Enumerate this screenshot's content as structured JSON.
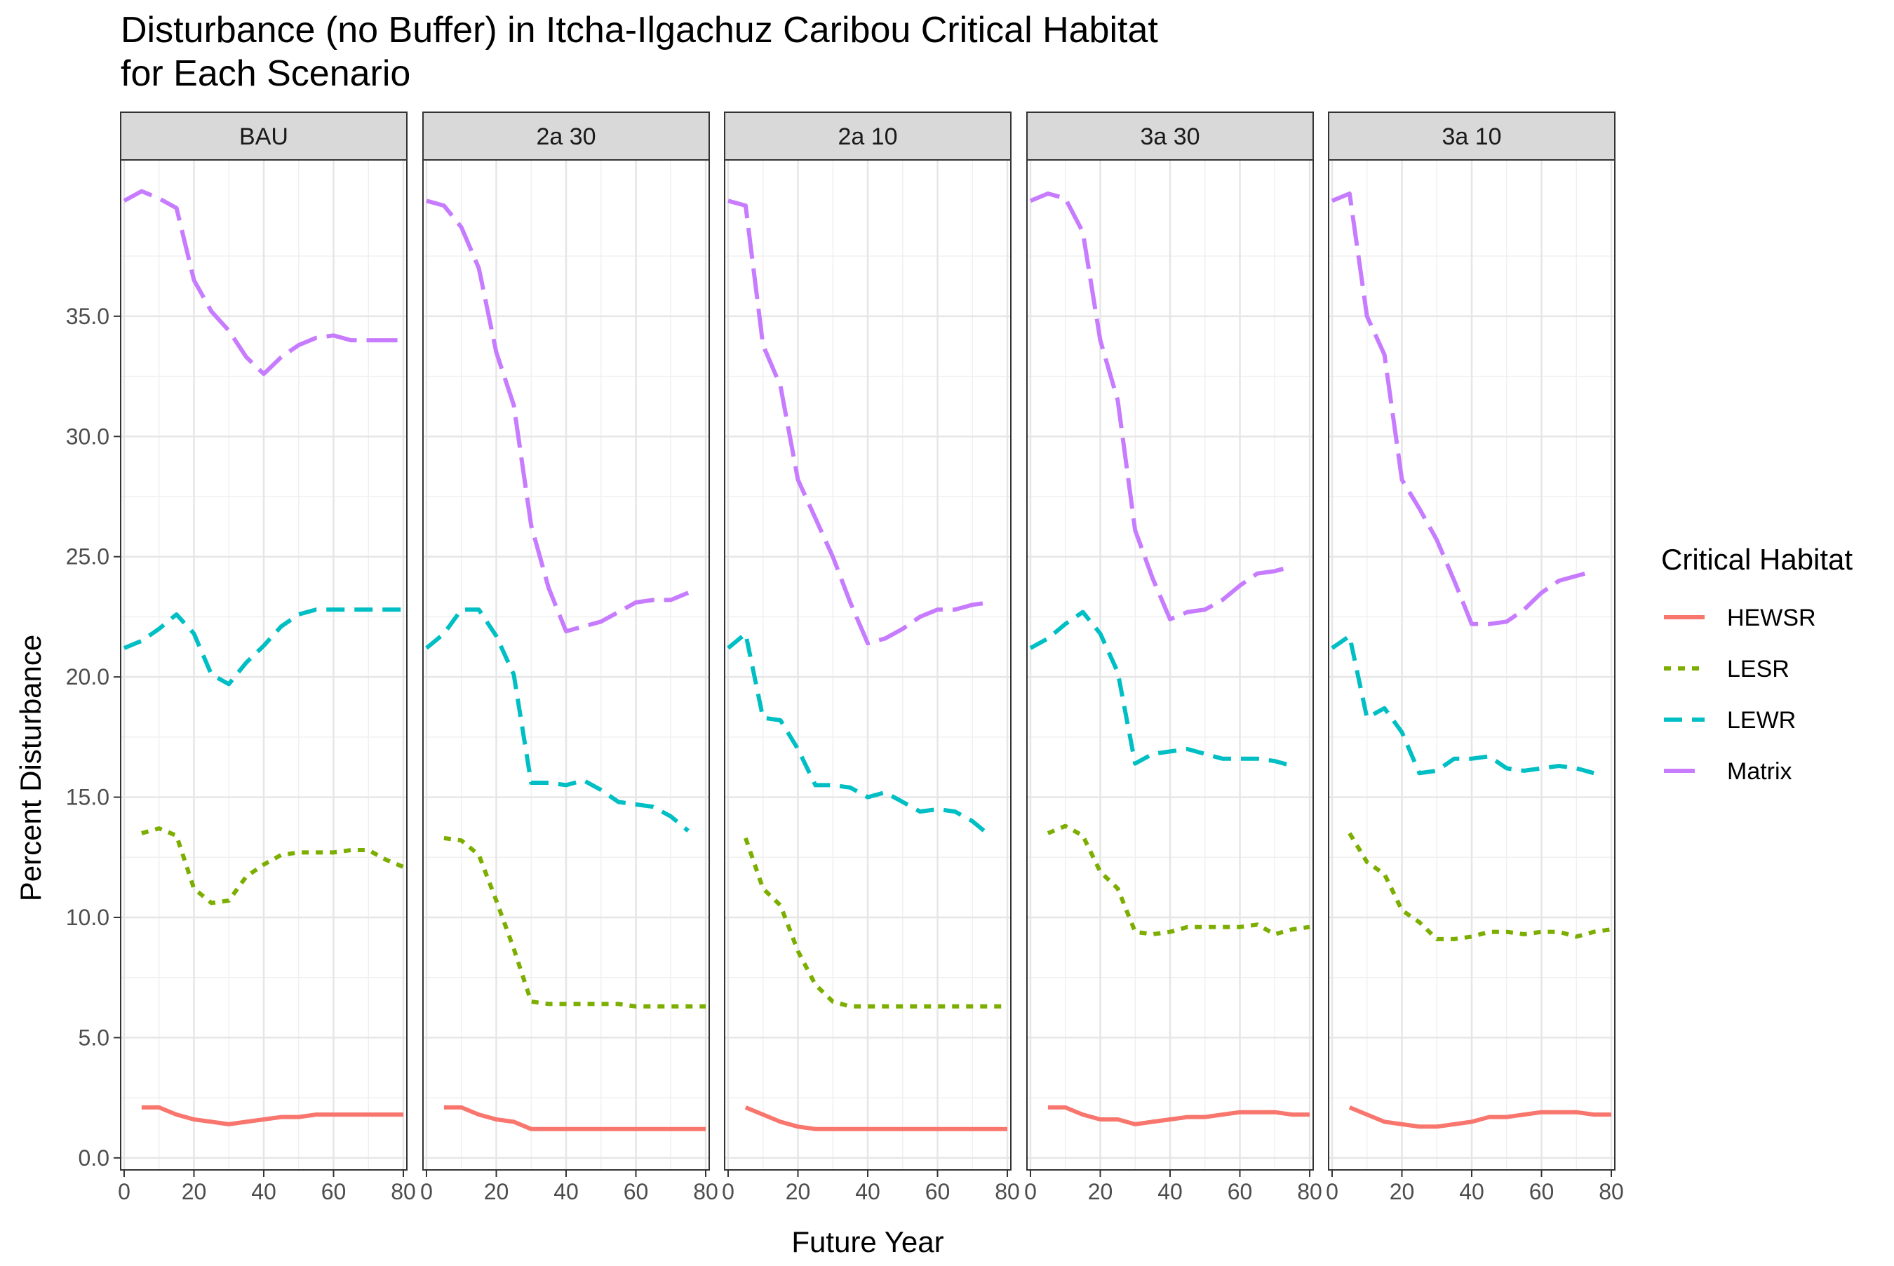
{
  "chart_data": {
    "type": "line",
    "title_lines": [
      "Disturbance (no Buffer) in Itcha-Ilgachuz Caribou Critical Habitat",
      "for Each Scenario"
    ],
    "xlabel": "Future Year",
    "ylabel": "Percent Disturbance",
    "xlim": [
      -1,
      81
    ],
    "ylim": [
      -0.5,
      41.5
    ],
    "x_ticks": [
      0,
      20,
      40,
      60,
      80
    ],
    "x_tick_labels": [
      "0",
      "20",
      "40",
      "60",
      "80"
    ],
    "y_ticks": [
      0,
      5,
      10,
      15,
      20,
      25,
      30,
      35
    ],
    "y_tick_labels": [
      "0.0",
      "5.0",
      "10.0",
      "15.0",
      "20.0",
      "25.0",
      "30.0",
      "35.0"
    ],
    "grid": true,
    "legend": {
      "title": "Critical Habitat",
      "position": "right",
      "entries": [
        {
          "name": "HEWSR",
          "color": "#F8766D",
          "dash": "solid"
        },
        {
          "name": "LESR",
          "color": "#7CAE00",
          "dash": "dotted"
        },
        {
          "name": "LEWR",
          "color": "#00BFC4",
          "dash": "dashed"
        },
        {
          "name": "Matrix",
          "color": "#C77CFF",
          "dash": "longdash"
        }
      ]
    },
    "facets": [
      {
        "label": "BAU",
        "series": {
          "HEWSR": {
            "x": [
              5,
              10,
              15,
              20,
              25,
              30,
              35,
              40,
              45,
              50,
              55,
              60,
              65,
              70,
              75,
              80
            ],
            "y": [
              2.1,
              2.1,
              1.8,
              1.6,
              1.5,
              1.4,
              1.5,
              1.6,
              1.7,
              1.7,
              1.8,
              1.8,
              1.8,
              1.8,
              1.8,
              1.8
            ]
          },
          "LESR": {
            "x": [
              5,
              10,
              15,
              20,
              25,
              30,
              35,
              40,
              45,
              50,
              55,
              60,
              65,
              70,
              75,
              80
            ],
            "y": [
              13.5,
              13.7,
              13.4,
              11.2,
              10.6,
              10.7,
              11.7,
              12.2,
              12.6,
              12.7,
              12.7,
              12.7,
              12.8,
              12.8,
              12.4,
              12.1
            ]
          },
          "LEWR": {
            "x": [
              0,
              5,
              10,
              15,
              20,
              25,
              30,
              35,
              40,
              45,
              50,
              55,
              60,
              65,
              70,
              75,
              80
            ],
            "y": [
              21.2,
              21.5,
              22.0,
              22.6,
              21.8,
              20.1,
              19.7,
              20.6,
              21.3,
              22.1,
              22.6,
              22.8,
              22.8,
              22.8,
              22.8,
              22.8,
              22.8
            ]
          },
          "Matrix": {
            "x": [
              0,
              5,
              10,
              15,
              20,
              25,
              30,
              35,
              40,
              45,
              50,
              55,
              60,
              65,
              70,
              75,
              80
            ],
            "y": [
              39.8,
              40.2,
              39.9,
              39.5,
              36.5,
              35.2,
              34.4,
              33.3,
              32.6,
              33.3,
              33.8,
              34.1,
              34.2,
              34.0,
              34.0,
              34.0,
              34.0
            ]
          }
        }
      },
      {
        "label": "2a 30",
        "series": {
          "HEWSR": {
            "x": [
              5,
              10,
              15,
              20,
              25,
              30,
              35,
              40,
              45,
              50,
              55,
              60,
              65,
              70,
              75,
              80
            ],
            "y": [
              2.1,
              2.1,
              1.8,
              1.6,
              1.5,
              1.2,
              1.2,
              1.2,
              1.2,
              1.2,
              1.2,
              1.2,
              1.2,
              1.2,
              1.2,
              1.2
            ]
          },
          "LESR": {
            "x": [
              5,
              10,
              15,
              20,
              25,
              30,
              35,
              40,
              45,
              50,
              55,
              60,
              65,
              70,
              75,
              80
            ],
            "y": [
              13.3,
              13.2,
              12.6,
              10.7,
              8.7,
              6.5,
              6.4,
              6.4,
              6.4,
              6.4,
              6.4,
              6.3,
              6.3,
              6.3,
              6.3,
              6.3
            ]
          },
          "LEWR": {
            "x": [
              0,
              5,
              10,
              15,
              20,
              25,
              30,
              35,
              40,
              45,
              50,
              55,
              60,
              65,
              70,
              75
            ],
            "y": [
              21.2,
              21.8,
              22.8,
              22.8,
              21.7,
              20.1,
              15.6,
              15.6,
              15.5,
              15.7,
              15.3,
              14.8,
              14.7,
              14.6,
              14.2,
              13.6
            ]
          },
          "Matrix": {
            "x": [
              0,
              5,
              10,
              15,
              20,
              25,
              30,
              35,
              40,
              45,
              50,
              55,
              60,
              65,
              70,
              75
            ],
            "y": [
              39.8,
              39.6,
              38.7,
              37.0,
              33.5,
              31.3,
              26.3,
              23.7,
              21.9,
              22.1,
              22.3,
              22.7,
              23.1,
              23.2,
              23.2,
              23.5
            ]
          }
        }
      },
      {
        "label": "2a 10",
        "series": {
          "HEWSR": {
            "x": [
              5,
              10,
              15,
              20,
              25,
              30,
              35,
              40,
              45,
              50,
              55,
              60,
              65,
              70,
              75,
              80
            ],
            "y": [
              2.1,
              1.8,
              1.5,
              1.3,
              1.2,
              1.2,
              1.2,
              1.2,
              1.2,
              1.2,
              1.2,
              1.2,
              1.2,
              1.2,
              1.2,
              1.2
            ]
          },
          "LESR": {
            "x": [
              5,
              10,
              15,
              20,
              25,
              30,
              35,
              40,
              45,
              50,
              55,
              60,
              65,
              70,
              75,
              80
            ],
            "y": [
              13.3,
              11.2,
              10.5,
              8.6,
              7.2,
              6.5,
              6.3,
              6.3,
              6.3,
              6.3,
              6.3,
              6.3,
              6.3,
              6.3,
              6.3,
              6.3
            ]
          },
          "LEWR": {
            "x": [
              0,
              5,
              10,
              15,
              20,
              25,
              30,
              35,
              40,
              45,
              50,
              55,
              60,
              65,
              70,
              75
            ],
            "y": [
              21.2,
              21.8,
              18.3,
              18.2,
              17.0,
              15.5,
              15.5,
              15.4,
              15.0,
              15.2,
              14.8,
              14.4,
              14.5,
              14.4,
              14.0,
              13.4
            ]
          },
          "Matrix": {
            "x": [
              0,
              5,
              10,
              15,
              20,
              25,
              30,
              35,
              40,
              45,
              50,
              55,
              60,
              65,
              70,
              75
            ],
            "y": [
              39.8,
              39.6,
              33.8,
              32.1,
              28.2,
              26.6,
              25.0,
              23.1,
              21.4,
              21.6,
              22.0,
              22.5,
              22.8,
              22.8,
              23.0,
              23.1
            ]
          }
        }
      },
      {
        "label": "3a 30",
        "series": {
          "HEWSR": {
            "x": [
              5,
              10,
              15,
              20,
              25,
              30,
              35,
              40,
              45,
              50,
              55,
              60,
              65,
              70,
              75,
              80
            ],
            "y": [
              2.1,
              2.1,
              1.8,
              1.6,
              1.6,
              1.4,
              1.5,
              1.6,
              1.7,
              1.7,
              1.8,
              1.9,
              1.9,
              1.9,
              1.8,
              1.8
            ]
          },
          "LESR": {
            "x": [
              5,
              10,
              15,
              20,
              25,
              30,
              35,
              40,
              45,
              50,
              55,
              60,
              65,
              70,
              75,
              80
            ],
            "y": [
              13.5,
              13.8,
              13.4,
              11.9,
              11.2,
              9.4,
              9.3,
              9.4,
              9.6,
              9.6,
              9.6,
              9.6,
              9.7,
              9.3,
              9.5,
              9.6
            ]
          },
          "LEWR": {
            "x": [
              0,
              5,
              10,
              15,
              20,
              25,
              30,
              35,
              40,
              45,
              50,
              55,
              60,
              65,
              70,
              75
            ],
            "y": [
              21.2,
              21.6,
              22.2,
              22.7,
              21.8,
              20.2,
              16.4,
              16.8,
              16.9,
              17.0,
              16.8,
              16.6,
              16.6,
              16.6,
              16.5,
              16.3
            ]
          },
          "Matrix": {
            "x": [
              0,
              5,
              10,
              15,
              20,
              25,
              30,
              35,
              40,
              45,
              50,
              55,
              60,
              65,
              70,
              75
            ],
            "y": [
              39.8,
              40.1,
              39.9,
              38.5,
              34.0,
              31.5,
              26.1,
              24.1,
              22.4,
              22.7,
              22.8,
              23.2,
              23.8,
              24.3,
              24.4,
              24.6
            ]
          }
        }
      },
      {
        "label": "3a 10",
        "series": {
          "HEWSR": {
            "x": [
              5,
              10,
              15,
              20,
              25,
              30,
              35,
              40,
              45,
              50,
              55,
              60,
              65,
              70,
              75,
              80
            ],
            "y": [
              2.1,
              1.8,
              1.5,
              1.4,
              1.3,
              1.3,
              1.4,
              1.5,
              1.7,
              1.7,
              1.8,
              1.9,
              1.9,
              1.9,
              1.8,
              1.8
            ]
          },
          "LESR": {
            "x": [
              5,
              10,
              15,
              20,
              25,
              30,
              35,
              40,
              45,
              50,
              55,
              60,
              65,
              70,
              75,
              80
            ],
            "y": [
              13.5,
              12.3,
              11.8,
              10.3,
              9.8,
              9.1,
              9.1,
              9.2,
              9.4,
              9.4,
              9.3,
              9.4,
              9.4,
              9.2,
              9.4,
              9.5
            ]
          },
          "LEWR": {
            "x": [
              0,
              5,
              10,
              15,
              20,
              25,
              30,
              35,
              40,
              45,
              50,
              55,
              60,
              65,
              70,
              75
            ],
            "y": [
              21.2,
              21.7,
              18.3,
              18.7,
              17.7,
              16.0,
              16.1,
              16.6,
              16.6,
              16.7,
              16.2,
              16.1,
              16.2,
              16.3,
              16.2,
              16.0
            ]
          },
          "Matrix": {
            "x": [
              0,
              5,
              10,
              15,
              20,
              25,
              30,
              35,
              40,
              45,
              50,
              55,
              60,
              65,
              70,
              75
            ],
            "y": [
              39.8,
              40.1,
              35.0,
              33.4,
              28.2,
              27.0,
              25.7,
              24.0,
              22.2,
              22.2,
              22.3,
              22.8,
              23.5,
              24.0,
              24.2,
              24.4
            ]
          }
        }
      }
    ]
  }
}
